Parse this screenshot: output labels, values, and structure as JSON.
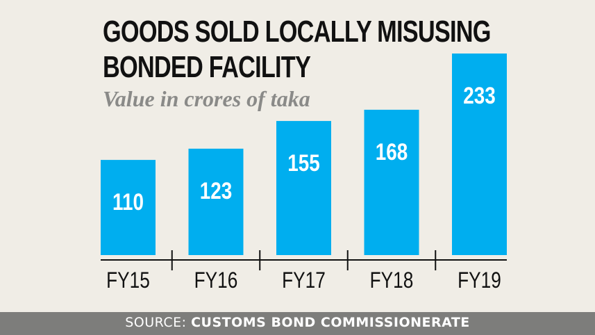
{
  "title_line1": "GOODS SOLD LOCALLY MISUSING",
  "title_line2": "BONDED FACILITY",
  "subtitle": "Value in crores of taka",
  "source_label": "SOURCE:",
  "source_value": "CUSTOMS BOND COMMISSIONERATE",
  "colors": {
    "bar": "#00aeef",
    "background": "#f0ede6",
    "footer": "#7d7d7b",
    "title": "#111111",
    "subtitle": "#8a8a88"
  },
  "chart_data": {
    "type": "bar",
    "title": "GOODS SOLD LOCALLY MISUSING BONDED FACILITY",
    "subtitle": "Value in crores of taka",
    "categories": [
      "FY15",
      "FY16",
      "FY17",
      "FY18",
      "FY19"
    ],
    "values": [
      110,
      123,
      155,
      168,
      233
    ],
    "data_labels": [
      "110",
      "123",
      "155",
      "168",
      "233"
    ],
    "xlabel": "",
    "ylabel": "",
    "ylim": [
      0,
      233
    ],
    "grid": false,
    "legend": "none"
  }
}
